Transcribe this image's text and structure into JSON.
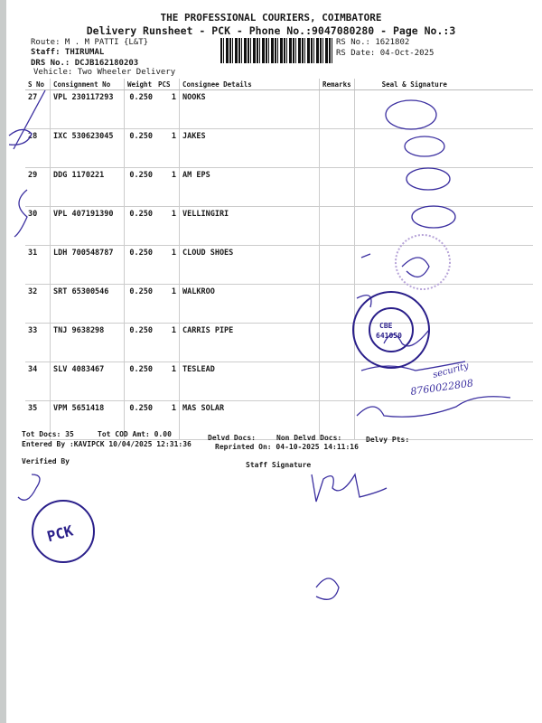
{
  "header": {
    "company": "THE PROFESSIONAL COURIERS, COIMBATORE",
    "title": "Delivery Runsheet - PCK - Phone No.:9047080280 - Page No.:3",
    "route": "Route: M . M PATTI {L&T}",
    "staff": "Staff: THIRUMAL",
    "drs": "DRS No.: DCJB162180203",
    "vehicle": "Vehicle: Two Wheeler Delivery",
    "rs_no": "RS No.: 1621802",
    "rs_date": "RS Date: 04-Oct-2025"
  },
  "table": {
    "columns": [
      "S No",
      "Consignment No",
      "Weight",
      "PCS",
      "Consignee Details",
      "Remarks",
      "Seal & Signature"
    ],
    "rows": [
      {
        "sno": "27",
        "cn": "VPL 230117293",
        "weight": "0.250",
        "pcs": "1",
        "consignee": "NOOKS"
      },
      {
        "sno": "28",
        "cn": "IXC 530623045",
        "weight": "0.250",
        "pcs": "1",
        "consignee": "JAKES"
      },
      {
        "sno": "29",
        "cn": "DDG 1170221",
        "weight": "0.250",
        "pcs": "1",
        "consignee": "AM EPS"
      },
      {
        "sno": "30",
        "cn": "VPL 407191390",
        "weight": "0.250",
        "pcs": "1",
        "consignee": "VELLINGIRI"
      },
      {
        "sno": "31",
        "cn": "LDH 700548787",
        "weight": "0.250",
        "pcs": "1",
        "consignee": "CLOUD SHOES"
      },
      {
        "sno": "32",
        "cn": "SRT 65300546",
        "weight": "0.250",
        "pcs": "1",
        "consignee": "WALKROO"
      },
      {
        "sno": "33",
        "cn": "TNJ 9638298",
        "weight": "0.250",
        "pcs": "1",
        "consignee": "CARRIS PIPE"
      },
      {
        "sno": "34",
        "cn": "SLV 4083467",
        "weight": "0.250",
        "pcs": "1",
        "consignee": "TESLEAD"
      },
      {
        "sno": "35",
        "cn": "VPM 5651418",
        "weight": "0.250",
        "pcs": "1",
        "consignee": "MAS SOLAR"
      }
    ]
  },
  "footer": {
    "tot_docs": "Tot Docs:  35",
    "tot_cod": "Tot COD Amt:    0.00",
    "delvd": "Delvd Docs:",
    "non_delvd": "Non Delvd Docs:",
    "delvy_pts": "Delvy Pts:",
    "entered_by": "Entered By :KAVIPCK 10/04/2025 12:31:36",
    "reprinted": "Reprinted On: 04-10-2025 14:11:16",
    "verified_by": "Verified By",
    "staff_signature": "Staff Signature"
  },
  "stamps": {
    "company_seal": "CARRIS PIPES AND TUBES PVT LTD CBE 641050",
    "pck_seal": "PCK"
  },
  "handwriting": {
    "phone": "8760022808",
    "note": "security"
  },
  "colors": {
    "ink": "#3b2fa0",
    "stamp": "#2a1f8a"
  }
}
